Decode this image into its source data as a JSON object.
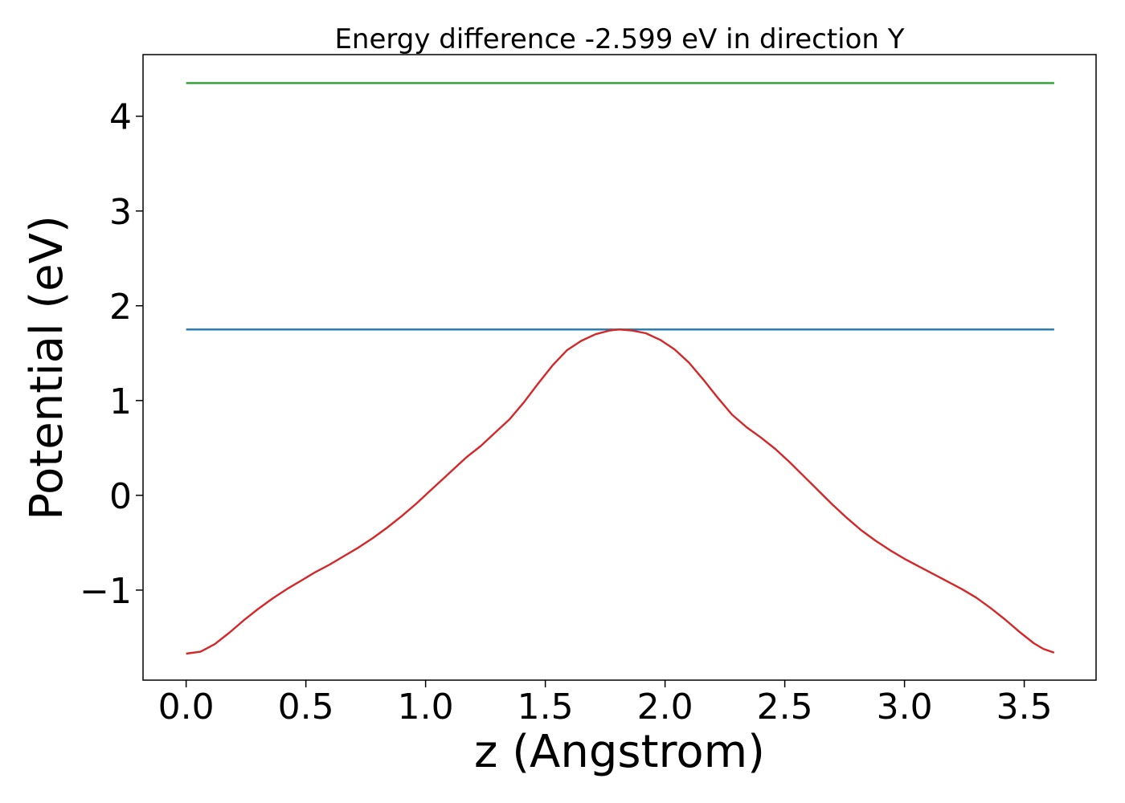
{
  "chart_data": {
    "type": "line",
    "title": "Energy difference -2.599 eV in direction Y",
    "xlabel": "z (Angstrom)",
    "ylabel": "Potential (eV)",
    "xlim": [
      -0.18,
      3.8
    ],
    "ylim": [
      -1.95,
      4.65
    ],
    "xticks": [
      0.0,
      0.5,
      1.0,
      1.5,
      2.0,
      2.5,
      3.0,
      3.5
    ],
    "xtick_labels": [
      "0.0",
      "0.5",
      "1.0",
      "1.5",
      "2.0",
      "2.5",
      "3.0",
      "3.5"
    ],
    "yticks": [
      -1,
      0,
      1,
      2,
      3,
      4
    ],
    "ytick_labels": [
      "−1",
      "0",
      "1",
      "2",
      "3",
      "4"
    ],
    "grid": false,
    "series": [
      {
        "color": "#2ca02c",
        "x": [
          0.0,
          3.625
        ],
        "y": [
          4.35,
          4.35
        ]
      },
      {
        "color": "#1f77b4",
        "x": [
          0.0,
          3.625
        ],
        "y": [
          1.75,
          1.75
        ]
      },
      {
        "color": "#d62728",
        "x": [
          0.0,
          0.06,
          0.12,
          0.18,
          0.24,
          0.3,
          0.36,
          0.42,
          0.48,
          0.54,
          0.6,
          0.66,
          0.72,
          0.78,
          0.84,
          0.9,
          0.96,
          1.02,
          1.08,
          1.14,
          1.17,
          1.23,
          1.29,
          1.35,
          1.41,
          1.47,
          1.53,
          1.59,
          1.65,
          1.71,
          1.77,
          1.81,
          1.86,
          1.92,
          1.98,
          2.04,
          2.1,
          2.16,
          2.22,
          2.28,
          2.34,
          2.4,
          2.46,
          2.52,
          2.58,
          2.64,
          2.7,
          2.76,
          2.82,
          2.88,
          2.94,
          3.0,
          3.06,
          3.12,
          3.18,
          3.24,
          3.3,
          3.36,
          3.42,
          3.48,
          3.54,
          3.58,
          3.625
        ],
        "y": [
          -1.67,
          -1.65,
          -1.57,
          -1.45,
          -1.32,
          -1.2,
          -1.09,
          -0.99,
          -0.9,
          -0.81,
          -0.73,
          -0.64,
          -0.55,
          -0.45,
          -0.34,
          -0.22,
          -0.09,
          0.05,
          0.19,
          0.33,
          0.4,
          0.52,
          0.66,
          0.8,
          0.98,
          1.18,
          1.37,
          1.53,
          1.63,
          1.7,
          1.74,
          1.75,
          1.74,
          1.71,
          1.64,
          1.54,
          1.4,
          1.22,
          1.03,
          0.85,
          0.72,
          0.61,
          0.49,
          0.35,
          0.2,
          0.05,
          -0.1,
          -0.24,
          -0.37,
          -0.48,
          -0.58,
          -0.67,
          -0.75,
          -0.83,
          -0.91,
          -0.99,
          -1.08,
          -1.19,
          -1.31,
          -1.44,
          -1.56,
          -1.62,
          -1.66
        ]
      }
    ]
  }
}
